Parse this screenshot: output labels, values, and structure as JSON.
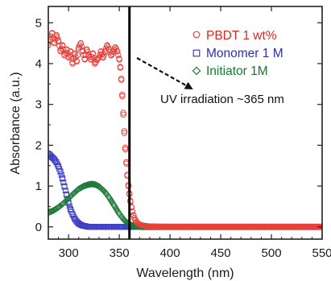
{
  "chart_data": {
    "type": "scatter",
    "title": "",
    "xlabel": "Wavelength (nm)",
    "ylabel": "Absorbance (a.u.)",
    "xlim": [
      280,
      550
    ],
    "ylim": [
      -0.3,
      5.4
    ],
    "xticks": [
      300,
      350,
      400,
      450,
      500,
      550
    ],
    "yticks": [
      0,
      1,
      2,
      3,
      4,
      5
    ],
    "grid": false,
    "legend_position": "top-right",
    "series": [
      {
        "name": "PBDT 1 wt%",
        "marker": "circle",
        "color": "#e8413b",
        "label_color": "#d42a22",
        "x": [
          280,
          282,
          284,
          286,
          288,
          290,
          292,
          294,
          296,
          298,
          300,
          302,
          304,
          306,
          308,
          310,
          312,
          314,
          316,
          318,
          320,
          322,
          324,
          326,
          328,
          330,
          332,
          334,
          336,
          338,
          340,
          342,
          344,
          346,
          348,
          350,
          351,
          352,
          353,
          354,
          355,
          356,
          357,
          358,
          359,
          360,
          361,
          362,
          363,
          364,
          365,
          366,
          367,
          368,
          370,
          372,
          374,
          376,
          378,
          380,
          383,
          386,
          390,
          395,
          400,
          410,
          420,
          440,
          460,
          480,
          500,
          520,
          540,
          550
        ],
        "y": [
          4.45,
          4.6,
          4.75,
          4.5,
          4.7,
          4.55,
          4.3,
          4.45,
          4.2,
          4.35,
          4.15,
          4.3,
          4.0,
          4.25,
          4.05,
          4.4,
          4.5,
          4.3,
          4.1,
          4.35,
          4.2,
          4.1,
          4.25,
          4.0,
          4.1,
          4.15,
          4.3,
          4.15,
          4.3,
          4.45,
          4.35,
          4.2,
          4.3,
          4.4,
          4.3,
          4.1,
          3.9,
          3.6,
          3.2,
          2.75,
          2.3,
          1.9,
          1.55,
          1.25,
          1.0,
          0.8,
          0.62,
          0.48,
          0.37,
          0.28,
          0.21,
          0.16,
          0.12,
          0.09,
          0.06,
          0.04,
          0.03,
          0.02,
          0.015,
          0.01,
          0.008,
          0.005,
          0.004,
          0.003,
          0.002,
          0.0,
          0.0,
          0.0,
          0.0,
          0.0,
          0.0,
          0.0,
          0.0,
          0.0
        ]
      },
      {
        "name": "Monomer 1 M",
        "marker": "square",
        "color": "#3c3fc0",
        "label_color": "#2e2fb0",
        "x": [
          280,
          282,
          284,
          286,
          288,
          290,
          292,
          294,
          296,
          298,
          300,
          302,
          304,
          306,
          308,
          310,
          312,
          314,
          316,
          318,
          320,
          325,
          330,
          340,
          350,
          360,
          380,
          400,
          450,
          500,
          550
        ],
        "y": [
          1.8,
          1.75,
          1.7,
          1.65,
          1.58,
          1.48,
          1.35,
          1.18,
          0.98,
          0.78,
          0.58,
          0.42,
          0.3,
          0.2,
          0.13,
          0.08,
          0.05,
          0.03,
          0.02,
          0.01,
          0.0,
          0.0,
          0.0,
          0.0,
          0.0,
          0.0,
          0.0,
          0.0,
          0.0,
          0.0,
          0.0
        ]
      },
      {
        "name": "Initiator 1M",
        "marker": "diamond",
        "color": "#1f7a3a",
        "label_color": "#157a2c",
        "x": [
          280,
          285,
          290,
          295,
          300,
          305,
          310,
          315,
          320,
          323,
          326,
          330,
          335,
          340,
          345,
          350,
          355,
          360,
          365,
          370,
          375,
          380,
          390,
          400,
          420,
          450,
          500,
          550
        ],
        "y": [
          0.35,
          0.4,
          0.48,
          0.58,
          0.7,
          0.82,
          0.93,
          1.0,
          1.04,
          1.05,
          1.04,
          0.99,
          0.88,
          0.72,
          0.52,
          0.32,
          0.16,
          0.06,
          0.02,
          0.005,
          0.0,
          0.0,
          0.0,
          0.0,
          0.0,
          0.0,
          0.0,
          0.0
        ]
      }
    ],
    "annotations": [
      {
        "text": "UV irradiation ~365 nm",
        "type": "arrow"
      }
    ],
    "vertical_line_x": 360
  }
}
